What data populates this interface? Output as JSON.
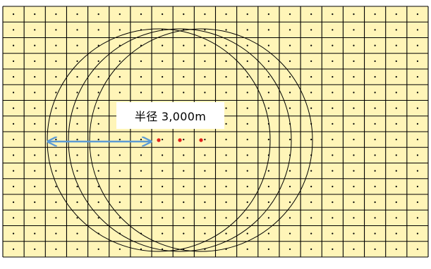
{
  "diagram": {
    "label": "半径 3,000m",
    "colors": {
      "background": "#ffffff",
      "cell_fill": "#fff5b8",
      "grid_line": "#000000",
      "grid_dot": "#000000",
      "circle_stroke": "#000000",
      "arrow": "#5b9bd5",
      "station_dot": "#e0201a"
    },
    "grid": {
      "columns": 20,
      "rows": 16,
      "dots_per_cell": 1
    },
    "circles": {
      "count": 3
    },
    "stations": {
      "count": 3
    },
    "arrow": {
      "style": "double-headed",
      "represents": "radius"
    }
  }
}
